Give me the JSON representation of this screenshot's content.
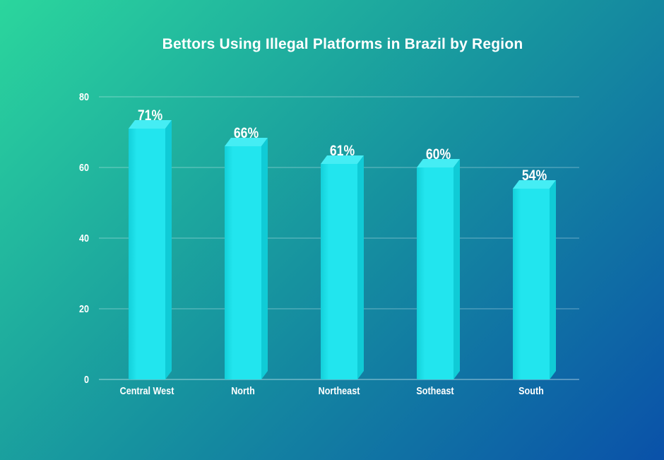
{
  "page": {
    "background_gradient": {
      "from": "#2BD69D",
      "mid": "#16919F",
      "to": "#0A51A9",
      "direction": "top-left to bottom-right"
    }
  },
  "chart_data": {
    "type": "bar",
    "title": "Bettors Using Illegal Platforms in Brazil by Region",
    "categories": [
      "Central West",
      "North",
      "Northeast",
      "Sotheast",
      "South"
    ],
    "values": [
      71,
      66,
      61,
      60,
      54
    ],
    "value_labels": [
      "71%",
      "66%",
      "61%",
      "60%",
      "54%"
    ],
    "xlabel": "",
    "ylabel": "",
    "ylim": [
      0,
      80
    ],
    "yticks": [
      0,
      20,
      40,
      60,
      80
    ],
    "grid": true,
    "legend": false,
    "bar_style": "3d-box",
    "colors": {
      "bar_front": "#22E5EE",
      "bar_front_edge": "#14CFD9",
      "bar_top": "#45EDF4",
      "bar_side": "#10CBD6",
      "grid_line": "rgba(235,250,252,0.40)",
      "axis_line": "rgba(235,250,252,0.65)",
      "text": "#FFFFFF"
    }
  }
}
